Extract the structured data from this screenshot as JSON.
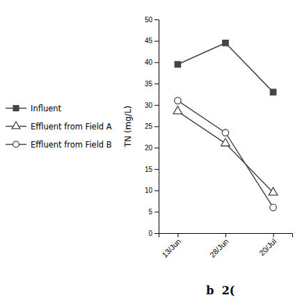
{
  "chart_data": {
    "type": "line",
    "categories": [
      "13/Jun",
      "28/Jun",
      "20/Jul"
    ],
    "series": [
      {
        "name": "Influent",
        "color": "#444444",
        "marker": "square",
        "values": [
          39.5,
          44.5,
          33.0
        ]
      },
      {
        "name": "Effluent from Field A",
        "color": "#444444",
        "marker": "triangle-open",
        "values": [
          28.5,
          21.0,
          9.5
        ]
      },
      {
        "name": "Effluent from Field B",
        "color": "#444444",
        "marker": "circle-open",
        "values": [
          31.0,
          23.5,
          6.0
        ]
      }
    ],
    "ylabel": "TN (mg/L)",
    "ylim": [
      0,
      50
    ],
    "yticks": [
      0,
      5,
      10,
      15,
      20,
      25,
      30,
      35,
      40,
      45,
      50
    ],
    "annotation": "b  2(",
    "legend": "left",
    "grid": false
  }
}
